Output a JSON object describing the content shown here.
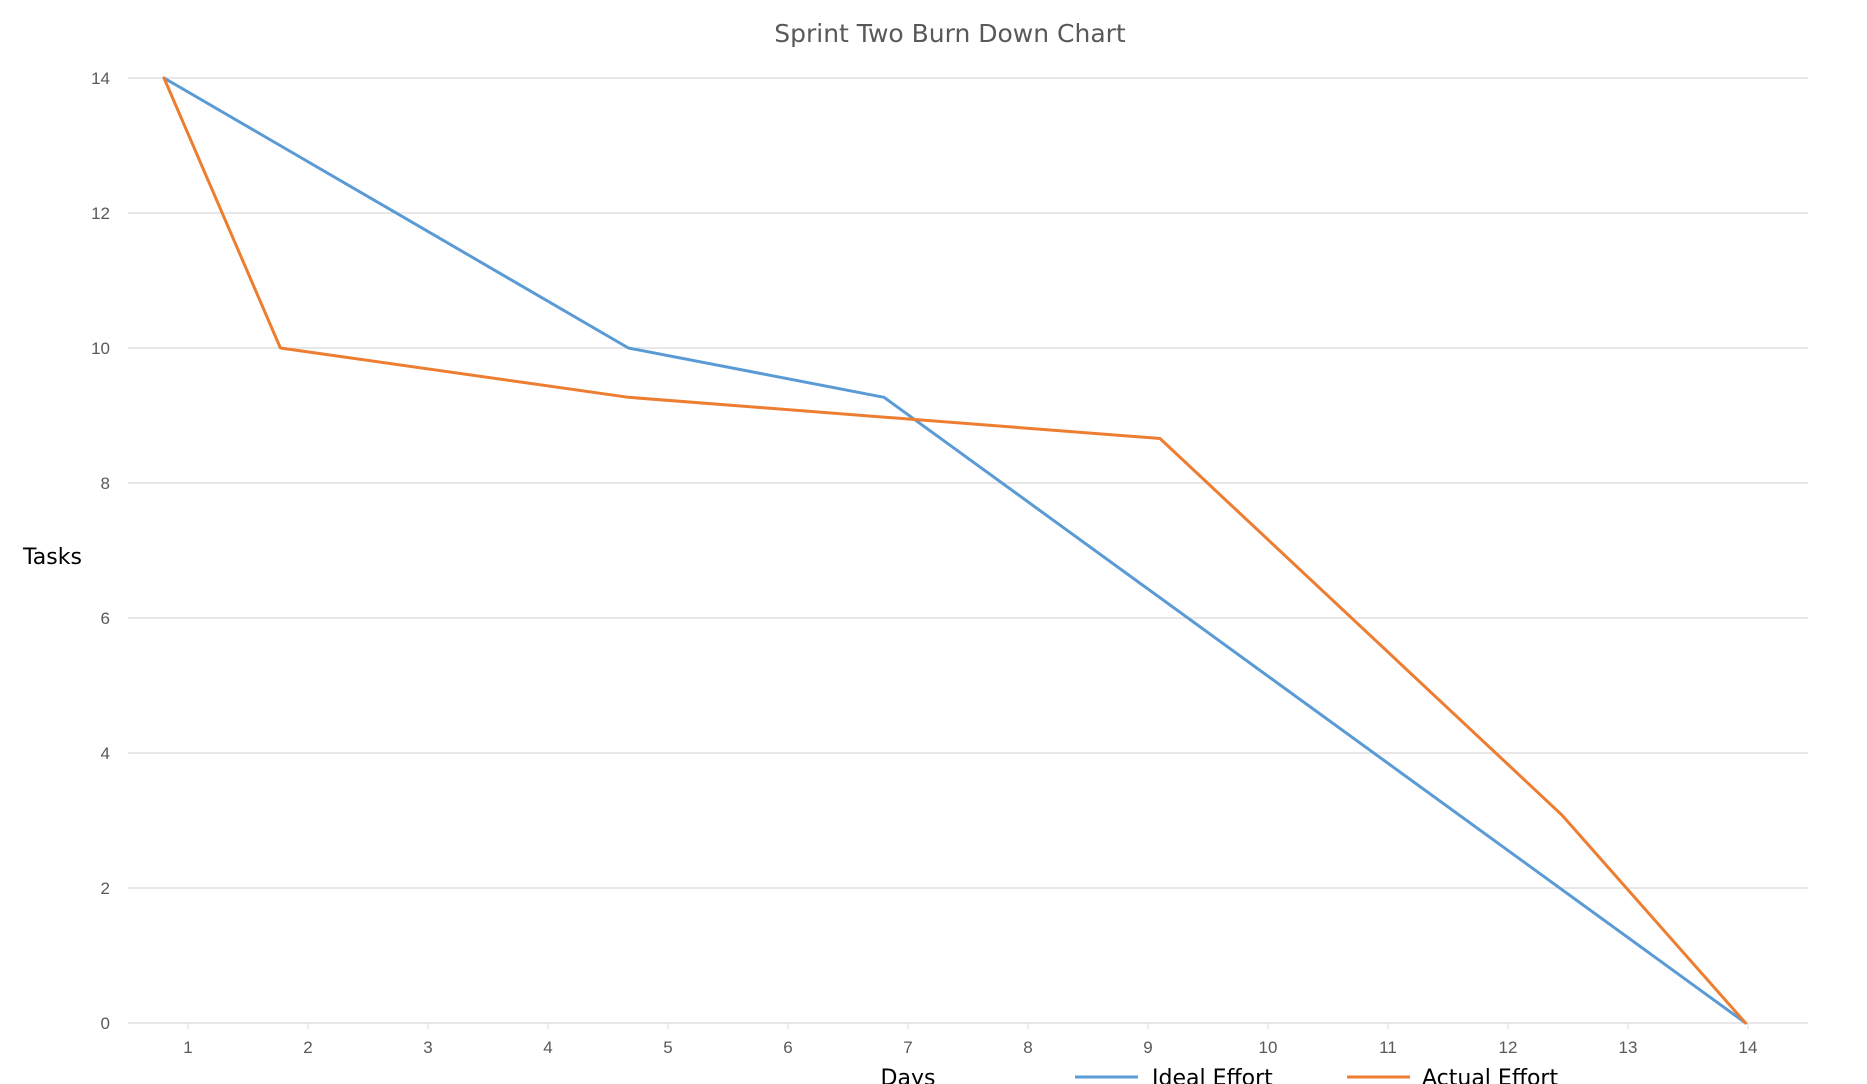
{
  "chart_data": {
    "type": "line",
    "title": "Sprint Two Burn Down Chart",
    "xlabel": "Days",
    "ylabel": "Tasks",
    "categories": [
      "1",
      "2",
      "3",
      "4",
      "5",
      "6",
      "7",
      "8",
      "9",
      "10",
      "11",
      "12",
      "13",
      "14"
    ],
    "y_ticks": [
      "0",
      "2",
      "4",
      "6",
      "8",
      "10",
      "12",
      "14"
    ],
    "ylim": [
      0,
      14
    ],
    "grid": true,
    "legend_position": "bottom",
    "series": [
      {
        "name": "Ideal Effort",
        "color": "#5b9bd5",
        "points": [
          [
            0.8,
            14
          ],
          [
            4.67,
            10
          ],
          [
            6.8,
            9.27
          ],
          [
            13.98,
            0
          ]
        ]
      },
      {
        "name": "Actual Effort",
        "color": "#ed7d31",
        "points": [
          [
            0.8,
            14
          ],
          [
            1.77,
            10
          ],
          [
            4.67,
            9.27
          ],
          [
            9.1,
            8.66
          ],
          [
            12.45,
            3.08
          ],
          [
            13.98,
            0
          ]
        ]
      }
    ]
  }
}
